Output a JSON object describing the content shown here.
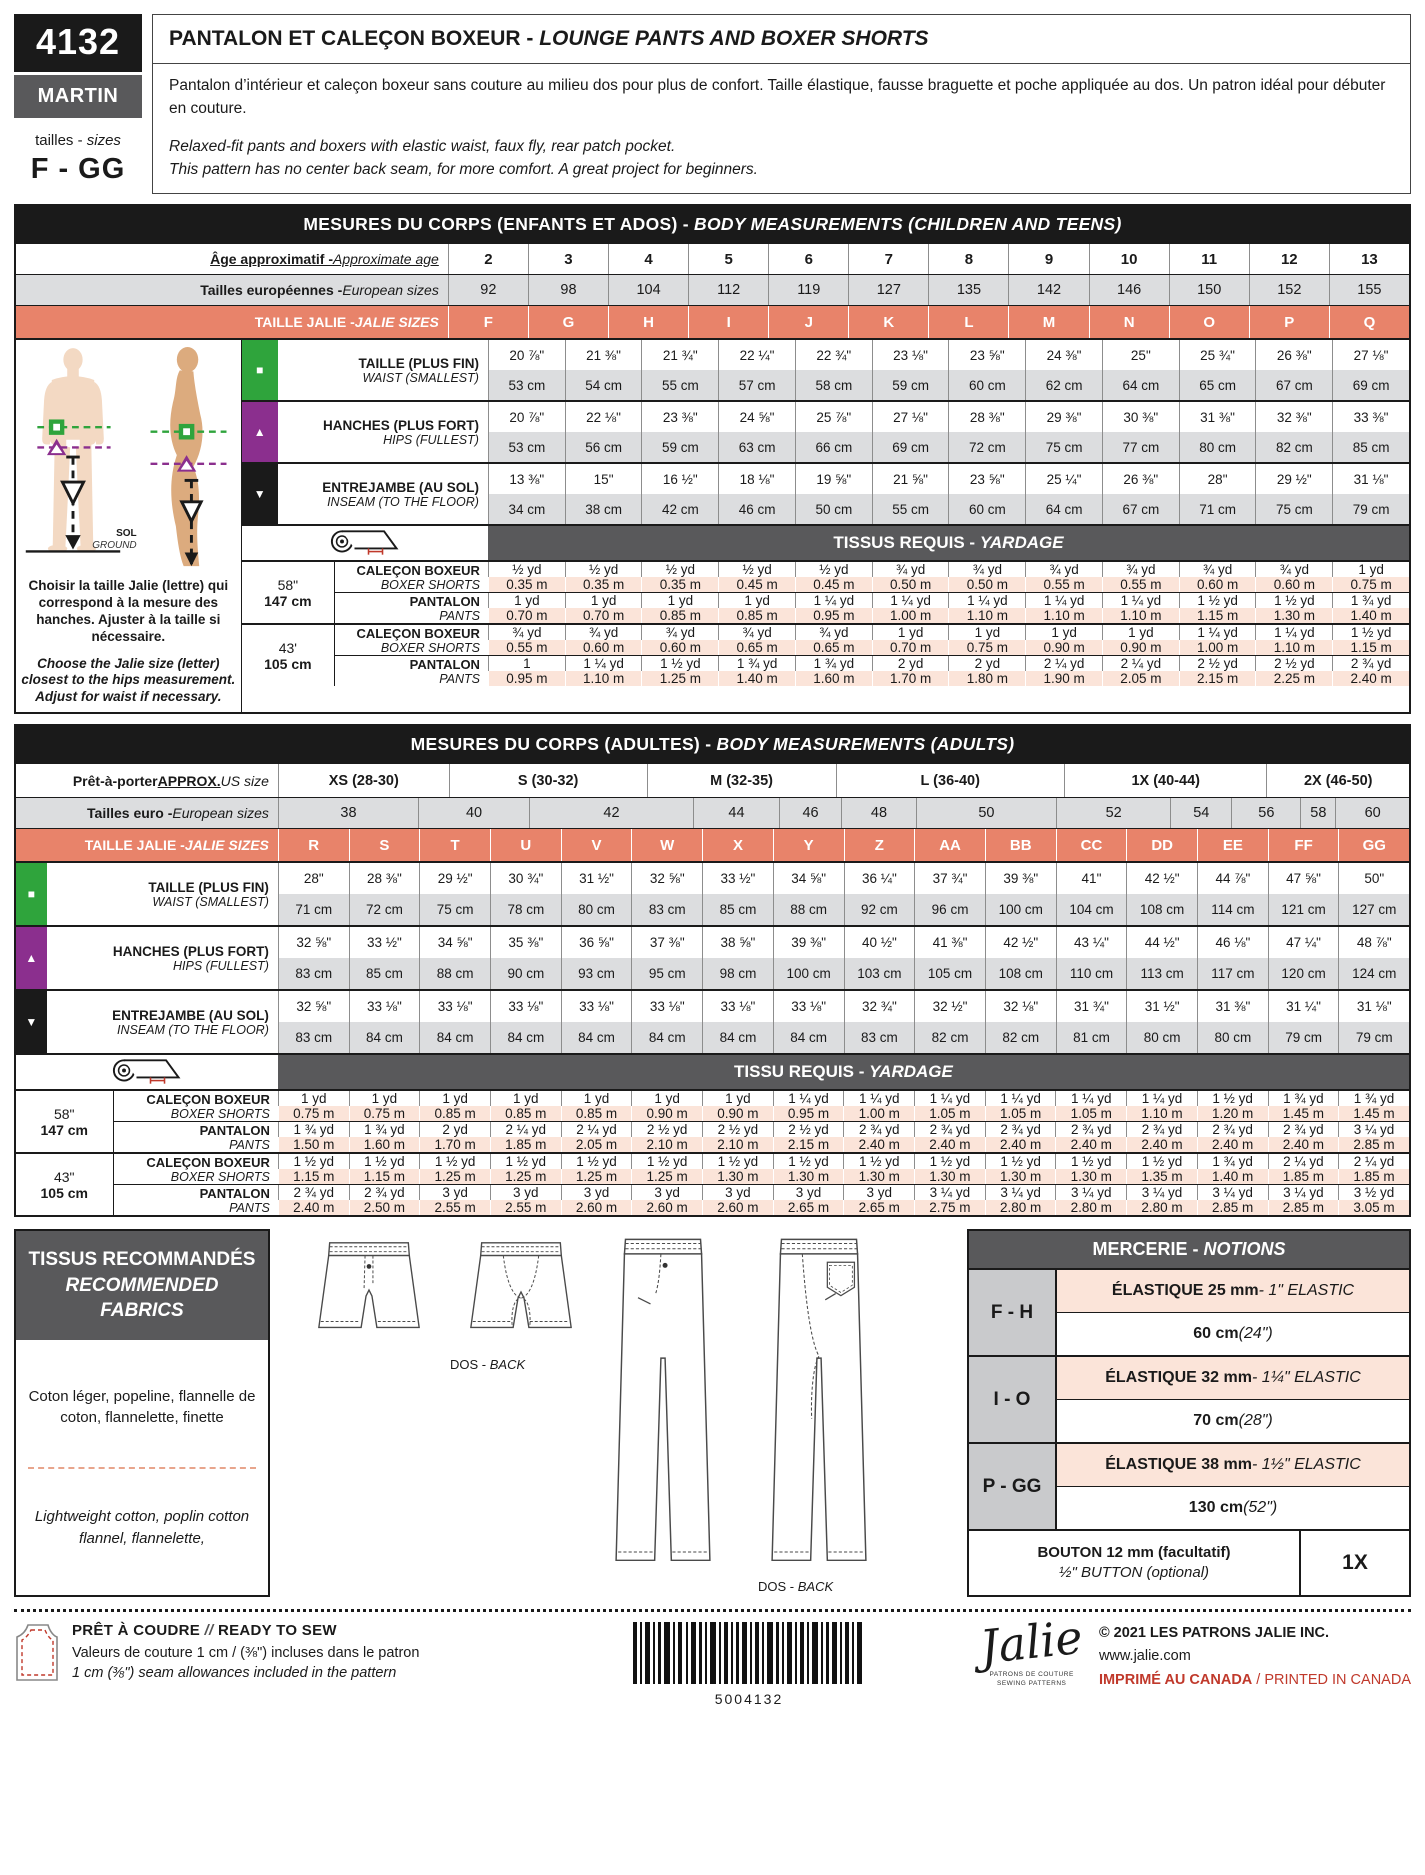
{
  "header": {
    "pattern_number": "4132",
    "model_name": "MARTIN",
    "sizes_label_fr": "tailles - ",
    "sizes_label_en": "sizes",
    "size_range": "F - GG",
    "title_fr": "PANTALON ET CALEÇON BOXEUR - ",
    "title_en": "LOUNGE PANTS AND BOXER SHORTS",
    "desc_fr": "Pantalon d’intérieur et caleçon boxeur sans couture au milieu dos pour plus de confort. Taille élastique, fausse braguette et poche appliquée au dos. Un patron idéal pour débuter en couture.",
    "desc_en_1": "Relaxed-fit pants and boxers with elastic waist, faux fly, rear patch pocket.",
    "desc_en_2": "This pattern has no center back seam, for more comfort. A great project for beginners."
  },
  "children": {
    "title_fr": "MESURES DU CORPS (ENFANTS ET ADOS) - ",
    "title_en": "BODY MEASUREMENTS (CHILDREN AND TEENS)",
    "age_label_fr": "Âge approximatif - ",
    "age_label_en": "Approximate age",
    "ages": [
      "2",
      "3",
      "4",
      "5",
      "6",
      "7",
      "8",
      "9",
      "10",
      "11",
      "12",
      "13"
    ],
    "euro_label_fr": "Tailles européennes - ",
    "euro_label_en": "European sizes",
    "euro_sizes": [
      "92",
      "98",
      "104",
      "112",
      "119",
      "127",
      "135",
      "142",
      "146",
      "150",
      "152",
      "155"
    ],
    "jalie_label_fr": "TAILLE JALIE -",
    "jalie_label_en": "JALIE SIZES",
    "jalie_sizes": [
      "F",
      "G",
      "H",
      "I",
      "J",
      "K",
      "L",
      "M",
      "N",
      "O",
      "P",
      "Q"
    ],
    "waist": {
      "label_fr": "TAILLE (PLUS FIN)",
      "label_en": "WAIST (SMALLEST)",
      "in": [
        "20 ⅞\"",
        "21 ⅜\"",
        "21 ¾\"",
        "22 ¼\"",
        "22 ¾\"",
        "23 ⅛\"",
        "23 ⅝\"",
        "24 ⅜\"",
        "25\"",
        "25 ¾\"",
        "26 ⅜\"",
        "27 ⅛\""
      ],
      "cm": [
        "53 cm",
        "54 cm",
        "55 cm",
        "57 cm",
        "58 cm",
        "59 cm",
        "60 cm",
        "62 cm",
        "64 cm",
        "65 cm",
        "67 cm",
        "69 cm"
      ]
    },
    "hips": {
      "label_fr": "HANCHES (PLUS FORT)",
      "label_en": "HIPS (FULLEST)",
      "in": [
        "20 ⅞\"",
        "22 ⅛\"",
        "23 ⅜\"",
        "24 ⅝\"",
        "25 ⅞\"",
        "27 ⅛\"",
        "28 ⅜\"",
        "29 ⅜\"",
        "30 ⅜\"",
        "31 ⅜\"",
        "32 ⅜\"",
        "33 ⅜\""
      ],
      "cm": [
        "53 cm",
        "56 cm",
        "59 cm",
        "63 cm",
        "66 cm",
        "69 cm",
        "72 cm",
        "75 cm",
        "77 cm",
        "80 cm",
        "82 cm",
        "85 cm"
      ]
    },
    "inseam": {
      "label_fr": "ENTREJAMBE (AU SOL)",
      "label_en": "INSEAM (TO THE FLOOR)",
      "in": [
        "13 ⅜\"",
        "15\"",
        "16 ½\"",
        "18 ⅛\"",
        "19 ⅝\"",
        "21 ⅝\"",
        "23 ⅝\"",
        "25 ¼\"",
        "26 ⅜\"",
        "28\"",
        "29 ½\"",
        "31 ⅛\""
      ],
      "cm": [
        "34 cm",
        "38 cm",
        "42 cm",
        "46 cm",
        "50 cm",
        "55 cm",
        "60 cm",
        "64 cm",
        "67 cm",
        "71 cm",
        "75 cm",
        "79 cm"
      ]
    },
    "sol": "SOL",
    "ground": "GROUND",
    "advice_fr": "Choisir la taille Jalie (lettre) qui correspond à la mesure des hanches. Ajuster à la taille si nécessaire.",
    "advice_en": "Choose the Jalie size (letter) closest to the hips measurement. Adjust for waist if necessary.",
    "yardage_title_fr": "TISSUS REQUIS - ",
    "yardage_title_en": "YARDAGE",
    "boxer_label_fr": "CALEÇON BOXEUR",
    "boxer_label_en": "BOXER SHORTS",
    "pants_label_fr": "PANTALON",
    "pants_label_en": "PANTS",
    "width1_in": "58\"",
    "width1_cm": "147 cm",
    "width2_in": "43'",
    "width2_cm": "105 cm",
    "y58_boxer_yd": [
      "½ yd",
      "½ yd",
      "½ yd",
      "½ yd",
      "½ yd",
      "¾ yd",
      "¾ yd",
      "¾ yd",
      "¾ yd",
      "¾ yd",
      "¾ yd",
      "1 yd"
    ],
    "y58_boxer_m": [
      "0.35 m",
      "0.35 m",
      "0.35 m",
      "0.45 m",
      "0.45 m",
      "0.50 m",
      "0.50 m",
      "0.55 m",
      "0.55 m",
      "0.60 m",
      "0.60 m",
      "0.75 m"
    ],
    "y58_pants_yd": [
      "1 yd",
      "1 yd",
      "1 yd",
      "1 yd",
      "1 ¼ yd",
      "1 ¼ yd",
      "1 ¼ yd",
      "1 ¼ yd",
      "1 ¼ yd",
      "1 ½ yd",
      "1 ½ yd",
      "1 ¾ yd"
    ],
    "y58_pants_m": [
      "0.70 m",
      "0.70 m",
      "0.85 m",
      "0.85 m",
      "0.95 m",
      "1.00 m",
      "1.10 m",
      "1.10 m",
      "1.10 m",
      "1.15 m",
      "1.30 m",
      "1.40 m"
    ],
    "y43_boxer_yd": [
      "¾ yd",
      "¾ yd",
      "¾ yd",
      "¾ yd",
      "¾ yd",
      "1 yd",
      "1 yd",
      "1 yd",
      "1 yd",
      "1 ¼ yd",
      "1 ¼ yd",
      "1 ½ yd"
    ],
    "y43_boxer_m": [
      "0.55 m",
      "0.60 m",
      "0.60 m",
      "0.65 m",
      "0.65 m",
      "0.70 m",
      "0.75 m",
      "0.90 m",
      "0.90 m",
      "1.00 m",
      "1.10 m",
      "1.15 m"
    ],
    "y43_pants_yd": [
      "1",
      "1 ¼ yd",
      "1 ½ yd",
      "1 ¾ yd",
      "1 ¾ yd",
      "2 yd",
      "2 yd",
      "2 ¼ yd",
      "2 ¼ yd",
      "2 ½ yd",
      "2 ½ yd",
      "2 ¾ yd"
    ],
    "y43_pants_m": [
      "0.95 m",
      "1.10 m",
      "1.25 m",
      "1.40 m",
      "1.60 m",
      "1.70 m",
      "1.80 m",
      "1.90 m",
      "2.05 m",
      "2.15 m",
      "2.25 m",
      "2.40 m"
    ]
  },
  "adults": {
    "title_fr": "MESURES DU CORPS (ADULTES) - ",
    "title_en": "BODY MEASUREMENTS (ADULTS)",
    "us_label_fr": "Prêt-à-porter ",
    "us_label_mid": "APPROX.",
    "us_label_en": " US size",
    "us_sizes": {
      "values": [
        "XS (28-30)",
        "S (30-32)",
        "M (32-35)",
        "L (36-40)",
        "1X (40-44)",
        "2X (46-50)"
      ],
      "widths": [
        15.1,
        17.5,
        16.7,
        20.2,
        17.9,
        12.6
      ]
    },
    "euro_label_fr": "Tailles euro - ",
    "euro_label_en": "European sizes",
    "euro_sizes": {
      "values": [
        "38",
        "40",
        "42",
        "44",
        "46",
        "48",
        "50",
        "52",
        "54",
        "56",
        "58",
        "60"
      ],
      "widths": [
        12.4,
        9.8,
        14.5,
        7.6,
        5.5,
        6.6,
        12.4,
        10.1,
        5.4,
        6.1,
        3.1,
        6.5
      ]
    },
    "jalie_label_fr": "TAILLE JALIE -",
    "jalie_label_en": "JALIE SIZES",
    "jalie_sizes": [
      "R",
      "S",
      "T",
      "U",
      "V",
      "W",
      "X",
      "Y",
      "Z",
      "AA",
      "BB",
      "CC",
      "DD",
      "EE",
      "FF",
      "GG"
    ],
    "waist": {
      "label_fr": "TAILLE (PLUS FIN)",
      "label_en": "WAIST (SMALLEST)",
      "in": [
        "28\"",
        "28 ⅜\"",
        "29 ½\"",
        "30 ¾\"",
        "31 ½\"",
        "32 ⅝\"",
        "33 ½\"",
        "34 ⅝\"",
        "36 ¼\"",
        "37 ¾\"",
        "39 ⅜\"",
        "41\"",
        "42 ½\"",
        "44 ⅞\"",
        "47 ⅝\"",
        "50\""
      ],
      "cm": [
        "71 cm",
        "72 cm",
        "75 cm",
        "78 cm",
        "80 cm",
        "83 cm",
        "85 cm",
        "88 cm",
        "92 cm",
        "96 cm",
        "100 cm",
        "104 cm",
        "108 cm",
        "114 cm",
        "121 cm",
        "127 cm"
      ]
    },
    "hips": {
      "label_fr": "HANCHES (PLUS FORT)",
      "label_en": "HIPS (FULLEST)",
      "in": [
        "32 ⅝\"",
        "33 ½\"",
        "34 ⅝\"",
        "35 ⅜\"",
        "36 ⅝\"",
        "37 ⅜\"",
        "38 ⅝\"",
        "39 ⅜\"",
        "40 ½\"",
        "41 ⅜\"",
        "42 ½\"",
        "43 ¼\"",
        "44 ½\"",
        "46 ⅛\"",
        "47 ¼\"",
        "48 ⅞\""
      ],
      "cm": [
        "83 cm",
        "85 cm",
        "88 cm",
        "90 cm",
        "93 cm",
        "95 cm",
        "98 cm",
        "100 cm",
        "103 cm",
        "105 cm",
        "108 cm",
        "110 cm",
        "113 cm",
        "117 cm",
        "120 cm",
        "124 cm"
      ]
    },
    "inseam": {
      "label_fr": "ENTREJAMBE (AU SOL)",
      "label_en": "INSEAM (TO THE FLOOR)",
      "in": [
        "32 ⅝\"",
        "33 ⅛\"",
        "33 ⅛\"",
        "33 ⅛\"",
        "33 ⅛\"",
        "33 ⅛\"",
        "33 ⅛\"",
        "33 ⅛\"",
        "32 ¾\"",
        "32 ½\"",
        "32 ⅛\"",
        "31 ¾\"",
        "31 ½\"",
        "31 ⅜\"",
        "31 ¼\"",
        "31 ⅛\""
      ],
      "cm": [
        "83 cm",
        "84 cm",
        "84 cm",
        "84 cm",
        "84 cm",
        "84 cm",
        "84 cm",
        "84 cm",
        "83 cm",
        "82 cm",
        "82 cm",
        "81 cm",
        "80 cm",
        "80 cm",
        "79 cm",
        "79 cm"
      ]
    },
    "yardage_title_fr": "TISSU REQUIS - ",
    "yardage_title_en": "YARDAGE",
    "boxer_label_fr": "CALEÇON BOXEUR",
    "boxer_label_en": "BOXER SHORTS",
    "pants_label_fr": "PANTALON",
    "pants_label_en": "PANTS",
    "width1_in": "58\"",
    "width1_cm": "147 cm",
    "width2_in": "43\"",
    "width2_cm": "105 cm",
    "y58_boxer_yd": [
      "1 yd",
      "1 yd",
      "1 yd",
      "1 yd",
      "1 yd",
      "1 yd",
      "1 yd",
      "1 ¼ yd",
      "1 ¼ yd",
      "1 ¼ yd",
      "1 ¼ yd",
      "1 ¼ yd",
      "1 ¼ yd",
      "1 ½ yd",
      "1 ¾ yd",
      "1 ¾ yd"
    ],
    "y58_boxer_m": [
      "0.75 m",
      "0.75 m",
      "0.85 m",
      "0.85 m",
      "0.85 m",
      "0.90 m",
      "0.90 m",
      "0.95 m",
      "1.00 m",
      "1.05 m",
      "1.05 m",
      "1.05 m",
      "1.10 m",
      "1.20 m",
      "1.45 m",
      "1.45 m"
    ],
    "y58_pants_yd": [
      "1 ¾ yd",
      "1 ¾ yd",
      "2 yd",
      "2 ¼ yd",
      "2 ¼ yd",
      "2 ½ yd",
      "2 ½ yd",
      "2 ½ yd",
      "2 ¾ yd",
      "2 ¾ yd",
      "2 ¾ yd",
      "2 ¾ yd",
      "2 ¾ yd",
      "2 ¾ yd",
      "2 ¾ yd",
      "3 ¼ yd"
    ],
    "y58_pants_m": [
      "1.50 m",
      "1.60 m",
      "1.70 m",
      "1.85 m",
      "2.05 m",
      "2.10 m",
      "2.10 m",
      "2.15 m",
      "2.40 m",
      "2.40 m",
      "2.40 m",
      "2.40 m",
      "2.40 m",
      "2.40 m",
      "2.40 m",
      "2.85 m"
    ],
    "y43_boxer_yd": [
      "1 ½ yd",
      "1 ½ yd",
      "1 ½ yd",
      "1 ½ yd",
      "1 ½ yd",
      "1 ½ yd",
      "1 ½ yd",
      "1 ½ yd",
      "1 ½ yd",
      "1 ½ yd",
      "1 ½ yd",
      "1 ½ yd",
      "1 ½ yd",
      "1 ¾ yd",
      "2 ¼ yd",
      "2 ¼ yd"
    ],
    "y43_boxer_m": [
      "1.15 m",
      "1.15 m",
      "1.25 m",
      "1.25 m",
      "1.25 m",
      "1.25 m",
      "1.30 m",
      "1.30 m",
      "1.30 m",
      "1.30 m",
      "1.30 m",
      "1.30 m",
      "1.35 m",
      "1.40 m",
      "1.85 m",
      "1.85 m"
    ],
    "y43_pants_yd": [
      "2 ¾ yd",
      "2 ¾ yd",
      "3 yd",
      "3 yd",
      "3 yd",
      "3 yd",
      "3 yd",
      "3 yd",
      "3 yd",
      "3 ¼ yd",
      "3 ¼ yd",
      "3 ¼ yd",
      "3 ¼ yd",
      "3 ¼ yd",
      "3 ¼ yd",
      "3 ½ yd"
    ],
    "y43_pants_m": [
      "2.40 m",
      "2.50 m",
      "2.55 m",
      "2.55 m",
      "2.60 m",
      "2.60 m",
      "2.60 m",
      "2.65 m",
      "2.65 m",
      "2.75 m",
      "2.80 m",
      "2.80 m",
      "2.80 m",
      "2.85 m",
      "2.85 m",
      "3.05 m"
    ]
  },
  "fabrics": {
    "title_fr": "TISSUS RECOMMANDÉS",
    "title_en": "RECOMMENDED FABRICS",
    "body_fr": "Coton léger, popeline, flannelle de coton, flannelette, finette",
    "body_en": "Lightweight cotton, poplin cotton flannel, flannelette,"
  },
  "drawings": {
    "boxer_back_label_fr": "DOS - ",
    "boxer_back_label_en": "BACK",
    "pants_back_label_fr": "DOS - ",
    "pants_back_label_en": "BACK"
  },
  "notions": {
    "title_fr": "MERCERIE - ",
    "title_en": "NOTIONS",
    "rows": [
      {
        "sizes": "F - H",
        "item_fr": "ÉLASTIQUE 25 mm",
        "item_en": " - 1\" ELASTIC",
        "len_cm": "60 cm",
        "len_in": " (24\")"
      },
      {
        "sizes": "I - O",
        "item_fr": "ÉLASTIQUE 32 mm",
        "item_en": " - 1¼\" ELASTIC",
        "len_cm": "70 cm",
        "len_in": " (28\")"
      },
      {
        "sizes": "P - GG",
        "item_fr": "ÉLASTIQUE 38 mm",
        "item_en": " - 1½\" ELASTIC",
        "len_cm": "130 cm",
        "len_in": " (52\")"
      }
    ],
    "button_fr": "BOUTON 12 mm (facultatif)",
    "button_en": "½\" BUTTON (optional)",
    "button_qty": "1X"
  },
  "footer": {
    "ready_fr": "PRÊT À COUDRE ",
    "ready_sep": "// ",
    "ready_en": "READY TO SEW",
    "seam_fr": "Valeurs de couture 1 cm / (⅜\") incluses dans le patron",
    "seam_en": "1 cm (⅜\") seam allowances included in the pattern",
    "barcode_number": "5004132",
    "logo": "Jalie",
    "logo_sub1": "PATRONS DE COUTURE",
    "logo_sub2": "SEWING PATTERNS",
    "copyright": "© 2021 LES PATRONS JALIE INC.",
    "website": "www.jalie.com",
    "printed_fr": "IMPRIMÉ AU CANADA",
    "printed_sep": " / ",
    "printed_en": "PRINTED IN CANADA"
  },
  "colors": {
    "salmon": "#e8836a",
    "peach": "#fbe4d9",
    "gray_row": "#dcdddf",
    "header_black": "#1a1a1a",
    "header_gray": "#59595b",
    "green": "#2fa43c",
    "purple": "#8b2f8e",
    "red": "#c0392b"
  }
}
